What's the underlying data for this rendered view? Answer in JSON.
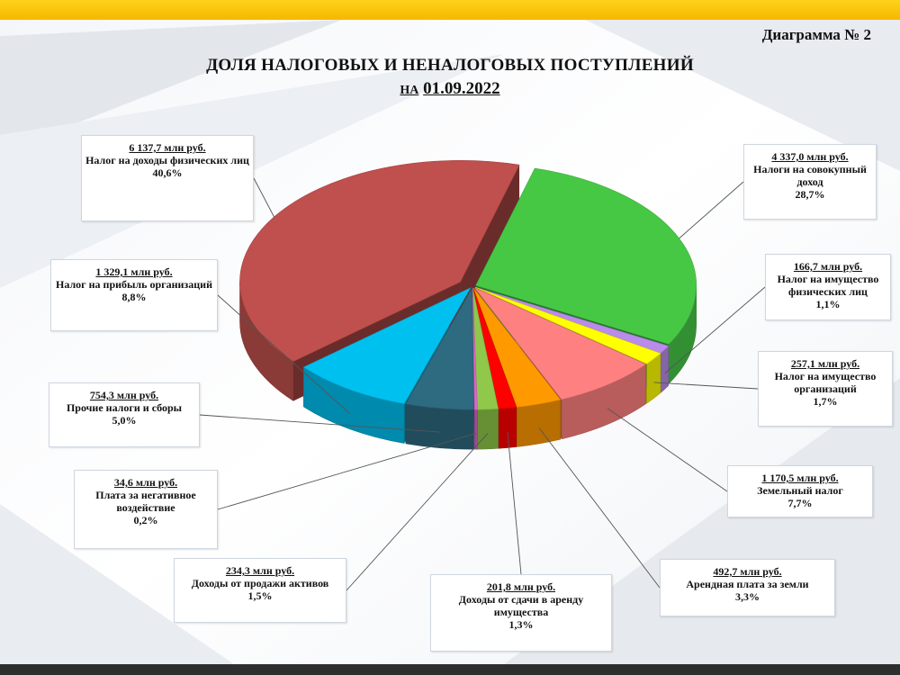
{
  "header": {
    "diagram_number": "Диаграмма № 2",
    "title": "ДОЛЯ НАЛОГОВЫХ И НЕНАЛОГОВЫХ ПОСТУПЛЕНИЙ",
    "subtitle_prefix": "НА",
    "subtitle_date": "01.09.2022"
  },
  "colors": {
    "top_bar": "#f5b800",
    "bottom_bar": "#2e2e2e"
  },
  "chart_data": {
    "type": "pie",
    "title": "ДОЛЯ НАЛОГОВЫХ И НЕНАЛОГОВЫХ ПОСТУПЛЕНИЙ",
    "subtitle": "НА 01.09.2022",
    "unit": "млн руб.",
    "slices": [
      {
        "name": "Налоги на совокупный доход",
        "amount": 4337.0,
        "amount_label": "4 337,0 млн руб.",
        "percent": 28.7,
        "percent_label": "28,7%",
        "color": "#47c845"
      },
      {
        "name": "Налог на имущество физических лиц",
        "amount": 166.7,
        "amount_label": "166,7 млн руб.",
        "percent": 1.1,
        "percent_label": "1,1%",
        "color": "#b98bea"
      },
      {
        "name": "Налог на имущество организаций",
        "amount": 257.1,
        "amount_label": "257,1 млн руб.",
        "percent": 1.7,
        "percent_label": "1,7%",
        "color": "#ffff00"
      },
      {
        "name": "Земельный налог",
        "amount": 1170.5,
        "amount_label": "1 170,5 млн руб.",
        "percent": 7.7,
        "percent_label": "7,7%",
        "color": "#ff8080"
      },
      {
        "name": "Арендная плата за земли",
        "amount": 492.7,
        "amount_label": "492,7 млн руб.",
        "percent": 3.3,
        "percent_label": "3,3%",
        "color": "#ff9900"
      },
      {
        "name": "Доходы от сдачи в аренду имущества",
        "amount": 201.8,
        "amount_label": "201,8 млн руб.",
        "percent": 1.3,
        "percent_label": "1,3%",
        "color": "#ff0000"
      },
      {
        "name": "Доходы от продажи активов",
        "amount": 234.3,
        "amount_label": "234,3 млн руб.",
        "percent": 1.5,
        "percent_label": "1,5%",
        "color": "#8fc84a"
      },
      {
        "name": "Плата за негативное воздействие",
        "amount": 34.6,
        "amount_label": "34,6 млн руб.",
        "percent": 0.2,
        "percent_label": "0,2%",
        "color": "#e066cc"
      },
      {
        "name": "Прочие налоги и сборы",
        "amount": 754.3,
        "amount_label": "754,3 млн руб.",
        "percent": 5.0,
        "percent_label": "5,0%",
        "color": "#2e6a80"
      },
      {
        "name": "Налог на прибыль организаций",
        "amount": 1329.1,
        "amount_label": "1 329,1 млн руб.",
        "percent": 8.8,
        "percent_label": "8,8%",
        "color": "#00c0f0"
      },
      {
        "name": "Налог на доходы физических лиц",
        "amount": 6137.7,
        "amount_label": "6 137,7 млн руб.",
        "percent": 40.6,
        "percent_label": "40,6%",
        "color": "#c0504d"
      }
    ]
  }
}
